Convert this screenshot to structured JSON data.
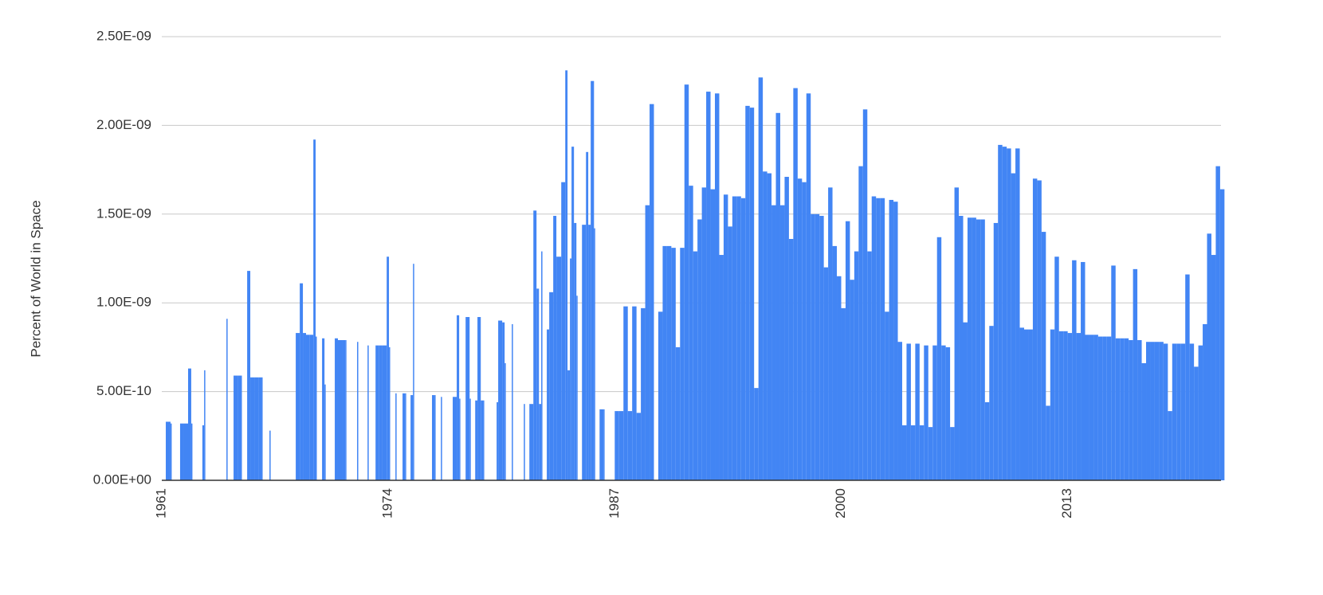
{
  "chart_data": {
    "type": "bar",
    "y_label": "Percent of World in Space",
    "color": "#4285f4",
    "grid": true,
    "xlim": [
      1961,
      2021.8
    ],
    "xticks": [
      1961,
      1974,
      1987,
      2000,
      2013
    ],
    "ylim": [
      0,
      2.5e-09
    ],
    "yticks": [
      {
        "value": 0,
        "label": "0.00E+00"
      },
      {
        "value": 5e-10,
        "label": "5.00E-10"
      },
      {
        "value": 1e-09,
        "label": "1.00E-09"
      },
      {
        "value": 1.5e-09,
        "label": "1.50E-09"
      },
      {
        "value": 2e-09,
        "label": "2.00E-09"
      },
      {
        "value": 2.5e-09,
        "label": "2.50E-09"
      }
    ],
    "x": [
      1961.23,
      1961.5,
      1962.05,
      1962.28,
      1962.51,
      1962.69,
      1963.33,
      1963.43,
      1964.71,
      1965.12,
      1965.35,
      1965.53,
      1965.9,
      1966.08,
      1966.35,
      1966.54,
      1966.72,
      1967.18,
      1968.69,
      1968.92,
      1969.1,
      1969.28,
      1969.47,
      1969.7,
      1969.83,
      1970.2,
      1970.34,
      1970.93,
      1971.11,
      1971.34,
      1971.53,
      1972.21,
      1972.81,
      1973.27,
      1973.45,
      1973.63,
      1973.91,
      1974.04,
      1974.41,
      1974.82,
      1974.96,
      1975.28,
      1975.42,
      1976.51,
      1976.65,
      1977.02,
      1977.7,
      1977.93,
      1978.07,
      1978.44,
      1978.67,
      1978.99,
      1979.12,
      1979.31,
      1979.44,
      1980.22,
      1980.31,
      1980.54,
      1980.68,
      1981.09,
      1981.78,
      1982.1,
      1982.33,
      1982.51,
      1982.65,
      1982.78,
      1983.1,
      1983.24,
      1983.47,
      1983.65,
      1983.93,
      1984.16,
      1984.29,
      1984.43,
      1984.52,
      1984.66,
      1984.8,
      1985.12,
      1985.35,
      1985.48,
      1985.62,
      1985.81,
      1986.13,
      1986.35,
      1987,
      1987.25,
      1987.5,
      1987.75,
      1988,
      1988.25,
      1988.5,
      1988.75,
      1989,
      1989.25,
      1989.5,
      1989.75,
      1990,
      1990.25,
      1990.5,
      1990.75,
      1991,
      1991.25,
      1991.5,
      1991.75,
      1992,
      1992.25,
      1992.5,
      1992.75,
      1993,
      1993.25,
      1993.5,
      1993.75,
      1994,
      1994.25,
      1994.5,
      1994.75,
      1995,
      1995.25,
      1995.5,
      1995.75,
      1996,
      1996.25,
      1996.5,
      1996.75,
      1997,
      1997.25,
      1997.5,
      1997.75,
      1998,
      1998.25,
      1998.5,
      1998.75,
      1999,
      1999.25,
      1999.5,
      1999.75,
      2000,
      2000.25,
      2000.5,
      2000.75,
      2001,
      2001.25,
      2001.5,
      2001.75,
      2002,
      2002.25,
      2002.5,
      2002.75,
      2003,
      2003.25,
      2003.5,
      2003.75,
      2004,
      2004.25,
      2004.5,
      2004.75,
      2005,
      2005.25,
      2005.5,
      2005.75,
      2006,
      2006.25,
      2006.5,
      2006.75,
      2007,
      2007.25,
      2007.5,
      2007.75,
      2008,
      2008.25,
      2008.5,
      2008.75,
      2009,
      2009.25,
      2009.5,
      2009.75,
      2010,
      2010.25,
      2010.5,
      2010.75,
      2011,
      2011.25,
      2011.5,
      2011.75,
      2012,
      2012.25,
      2012.5,
      2012.75,
      2013,
      2013.25,
      2013.5,
      2013.75,
      2014,
      2014.25,
      2014.5,
      2014.75,
      2015,
      2015.25,
      2015.5,
      2015.75,
      2016,
      2016.25,
      2016.5,
      2016.75,
      2017,
      2017.25,
      2017.5,
      2017.75,
      2018,
      2018.25,
      2018.5,
      2018.75,
      2019,
      2019.25,
      2019.5,
      2019.75,
      2020,
      2020.25,
      2020.5,
      2020.75,
      2021,
      2021.25,
      2021.5,
      2021.75
    ],
    "values": [
      3.3e-10,
      3.2e-10,
      3.2e-10,
      3.2e-10,
      6.3e-10,
      3.2e-10,
      3.1e-10,
      6.2e-10,
      9.1e-10,
      5.9e-10,
      5.9e-10,
      5.9e-10,
      1.18e-09,
      5.8e-10,
      5.8e-10,
      5.8e-10,
      5.8e-10,
      2.8e-10,
      8.3e-10,
      1.11e-09,
      8.3e-10,
      8.2e-10,
      8.2e-10,
      1.92e-09,
      8.1e-10,
      8e-10,
      5.4e-10,
      8e-10,
      7.9e-10,
      7.9e-10,
      7.9e-10,
      7.8e-10,
      7.6e-10,
      7.6e-10,
      7.6e-10,
      7.6e-10,
      1.26e-09,
      7.5e-10,
      4.9e-10,
      4.9e-10,
      4.9e-10,
      4.8e-10,
      1.22e-09,
      4.8e-10,
      4.8e-10,
      4.7e-10,
      4.7e-10,
      9.3e-10,
      4.6e-10,
      9.2e-10,
      4.6e-10,
      4.5e-10,
      9.2e-10,
      4.5e-10,
      4.5e-10,
      4.4e-10,
      9e-10,
      8.9e-10,
      6.6e-10,
      8.8e-10,
      4.3e-10,
      4.3e-10,
      1.52e-09,
      1.08e-09,
      4.3e-10,
      1.29e-09,
      8.5e-10,
      1.06e-09,
      1.49e-09,
      1.26e-09,
      1.68e-09,
      2.31e-09,
      6.2e-10,
      1.25e-09,
      1.88e-09,
      1.45e-09,
      1.04e-09,
      1.44e-09,
      1.85e-09,
      1.44e-09,
      2.25e-09,
      1.42e-09,
      4e-10,
      4e-10,
      3.9e-10,
      3.9e-10,
      9.8e-10,
      3.9e-10,
      9.8e-10,
      3.8e-10,
      9.7e-10,
      1.55e-09,
      2.12e-09,
      0,
      9.5e-10,
      1.32e-09,
      1.32e-09,
      1.31e-09,
      7.5e-10,
      1.31e-09,
      2.23e-09,
      1.66e-09,
      1.29e-09,
      1.47e-09,
      1.65e-09,
      2.19e-09,
      1.64e-09,
      2.18e-09,
      1.27e-09,
      1.61e-09,
      1.43e-09,
      1.6e-09,
      1.6e-09,
      1.59e-09,
      2.11e-09,
      2.1e-09,
      5.2e-10,
      2.27e-09,
      1.74e-09,
      1.73e-09,
      1.55e-09,
      2.07e-09,
      1.55e-09,
      1.71e-09,
      1.36e-09,
      2.21e-09,
      1.7e-09,
      1.68e-09,
      2.18e-09,
      1.5e-09,
      1.5e-09,
      1.49e-09,
      1.2e-09,
      1.65e-09,
      1.32e-09,
      1.15e-09,
      9.7e-10,
      1.46e-09,
      1.13e-09,
      1.29e-09,
      1.77e-09,
      2.09e-09,
      1.29e-09,
      1.6e-09,
      1.59e-09,
      1.59e-09,
      9.5e-10,
      1.58e-09,
      1.57e-09,
      7.8e-10,
      3.1e-10,
      7.7e-10,
      3.1e-10,
      7.7e-10,
      3.1e-10,
      7.6e-10,
      3e-10,
      7.6e-10,
      1.37e-09,
      7.6e-10,
      7.5e-10,
      3e-10,
      1.65e-09,
      1.49e-09,
      8.9e-10,
      1.48e-09,
      1.48e-09,
      1.47e-09,
      1.47e-09,
      4.4e-10,
      8.7e-10,
      1.45e-09,
      1.89e-09,
      1.88e-09,
      1.87e-09,
      1.73e-09,
      1.87e-09,
      8.6e-10,
      8.5e-10,
      8.5e-10,
      1.7e-09,
      1.69e-09,
      1.4e-09,
      4.2e-10,
      8.5e-10,
      1.26e-09,
      8.4e-10,
      8.4e-10,
      8.3e-10,
      1.24e-09,
      8.3e-10,
      1.23e-09,
      8.2e-10,
      8.2e-10,
      8.2e-10,
      8.1e-10,
      8.1e-10,
      8.1e-10,
      1.21e-09,
      8e-10,
      8e-10,
      8e-10,
      7.9e-10,
      1.19e-09,
      7.9e-10,
      6.6e-10,
      7.8e-10,
      7.8e-10,
      7.8e-10,
      7.8e-10,
      7.7e-10,
      3.9e-10,
      7.7e-10,
      7.7e-10,
      7.7e-10,
      1.16e-09,
      7.7e-10,
      6.4e-10,
      7.6e-10,
      8.8e-10,
      1.39e-09,
      1.27e-09,
      1.77e-09,
      1.64e-09
    ]
  }
}
